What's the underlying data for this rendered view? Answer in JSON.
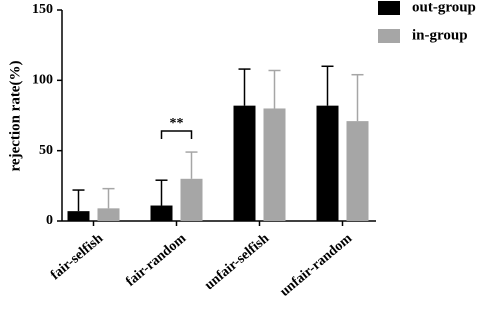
{
  "chart_data": {
    "type": "bar",
    "y_label": "rejection rate(%)",
    "categories": [
      "fair-selfish",
      "fair-random",
      "unfair-selfish",
      "unfair-random"
    ],
    "series": [
      {
        "name": "out-group",
        "color": "#000000",
        "values": [
          7,
          11,
          82,
          82
        ],
        "errors": [
          15,
          18,
          26,
          28
        ]
      },
      {
        "name": "in-group",
        "color": "#a6a6a6",
        "values": [
          9,
          30,
          80,
          71
        ],
        "errors": [
          14,
          19,
          27,
          33
        ]
      }
    ],
    "annotation": "**",
    "ylim": [
      0,
      150
    ],
    "yticks": [
      0,
      50,
      100,
      150
    ],
    "legend": "top-right"
  }
}
